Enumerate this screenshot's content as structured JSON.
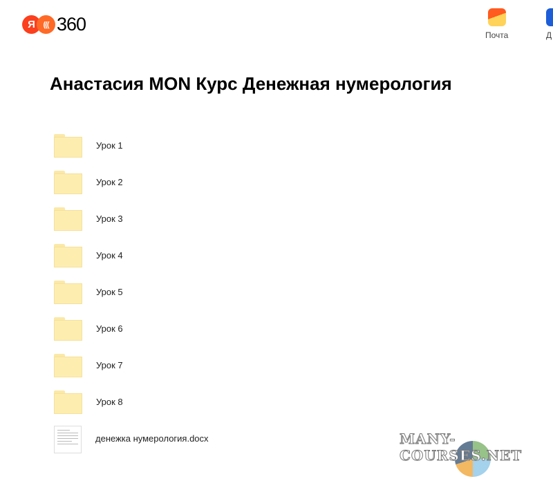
{
  "header": {
    "logo_text": "360",
    "logo_letter": "Я",
    "services": [
      {
        "label": "Почта",
        "icon": "mail-icon"
      },
      {
        "label": "Д",
        "icon": "disk-icon"
      }
    ]
  },
  "page_title": "Анастасия MON Курс Денежная нумерология",
  "items": [
    {
      "name": "Урок 1",
      "type": "folder"
    },
    {
      "name": "Урок 2",
      "type": "folder"
    },
    {
      "name": "Урок 3",
      "type": "folder"
    },
    {
      "name": "Урок 4",
      "type": "folder"
    },
    {
      "name": "Урок 5",
      "type": "folder"
    },
    {
      "name": "Урок 6",
      "type": "folder"
    },
    {
      "name": "Урок 7",
      "type": "folder"
    },
    {
      "name": "Урок 8",
      "type": "folder"
    },
    {
      "name": "денежка нумерология.docx",
      "type": "document"
    }
  ],
  "watermark": "MANY-COURSES.NET"
}
